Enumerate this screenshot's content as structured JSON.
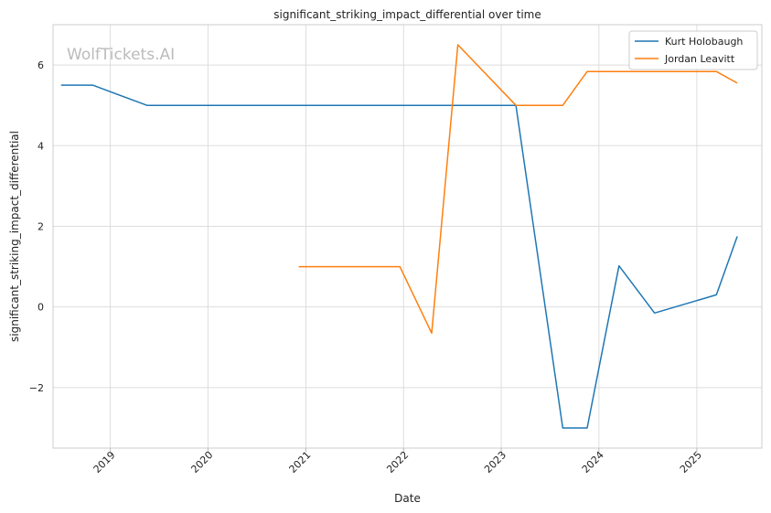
{
  "chart_data": {
    "type": "line",
    "title": "significant_striking_impact_differential over time",
    "xlabel": "Date",
    "ylabel": "significant_striking_impact_differential",
    "watermark": "WolfTickets.AI",
    "xlim": [
      "2018-06-01",
      "2025-09-01"
    ],
    "ylim": [
      -3.5,
      7.0
    ],
    "x_ticks": [
      "2019-01-01",
      "2020-01-01",
      "2021-01-01",
      "2022-01-01",
      "2023-01-01",
      "2024-01-01",
      "2025-01-01"
    ],
    "x_tick_labels": [
      "2019",
      "2020",
      "2021",
      "2022",
      "2023",
      "2024",
      "2025"
    ],
    "y_ticks": [
      -2,
      0,
      2,
      4,
      6
    ],
    "y_tick_labels": [
      "−2",
      "0",
      "2",
      "4",
      "6"
    ],
    "grid": true,
    "legend_position": "top-right",
    "series": [
      {
        "name": "Kurt Holobaugh",
        "color": "#1f77b4",
        "points": [
          [
            "2018-07-01",
            5.5
          ],
          [
            "2018-10-27",
            5.5
          ],
          [
            "2019-05-18",
            5.0
          ],
          [
            "2023-02-25",
            5.0
          ],
          [
            "2023-08-19",
            -3.0
          ],
          [
            "2023-11-18",
            -3.0
          ],
          [
            "2024-03-16",
            1.02
          ],
          [
            "2024-07-27",
            -0.15
          ],
          [
            "2025-03-15",
            0.3
          ],
          [
            "2025-06-01",
            1.75
          ]
        ]
      },
      {
        "name": "Jordan Leavitt",
        "color": "#ff7f0e",
        "points": [
          [
            "2020-12-05",
            1.0
          ],
          [
            "2021-12-18",
            1.0
          ],
          [
            "2022-04-16",
            -0.65
          ],
          [
            "2022-07-23",
            6.5
          ],
          [
            "2023-02-25",
            5.0
          ],
          [
            "2023-08-19",
            5.0
          ],
          [
            "2023-11-18",
            5.84
          ],
          [
            "2025-03-15",
            5.84
          ],
          [
            "2025-06-01",
            5.55
          ]
        ]
      }
    ]
  }
}
